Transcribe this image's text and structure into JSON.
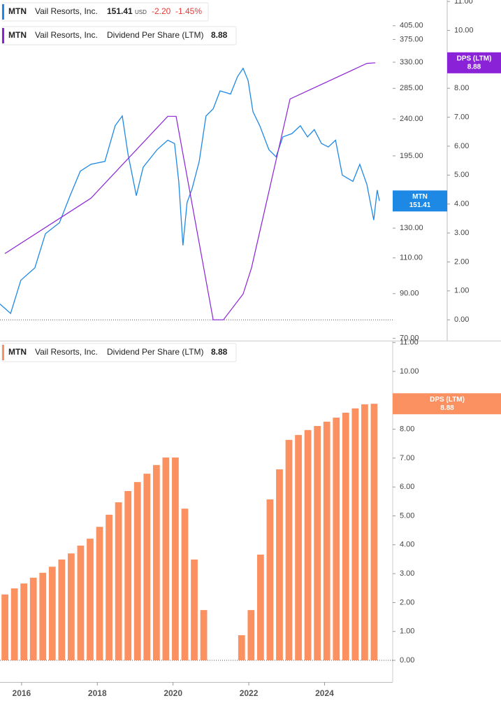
{
  "chart_data": [
    {
      "type": "line",
      "ylog": true,
      "xlim": [
        2015.43,
        2025.8
      ],
      "ylim": [
        69.1,
        468
      ],
      "y2lim": [
        -0.72,
        11.05
      ],
      "yticks": [
        {
          "value": 70,
          "label": "70.00"
        },
        {
          "value": 90,
          "label": "90.00"
        },
        {
          "value": 110,
          "label": "110.00"
        },
        {
          "value": 130,
          "label": "130.00"
        },
        {
          "value": 195,
          "label": "195.00"
        },
        {
          "value": 240,
          "label": "240.00"
        },
        {
          "value": 285,
          "label": "285.00"
        },
        {
          "value": 330,
          "label": "330.00"
        },
        {
          "value": 375,
          "label": "375.00"
        },
        {
          "value": 405,
          "label": "405.00"
        }
      ],
      "y2ticks": [
        {
          "value": 0,
          "label": "0.00"
        },
        {
          "value": 1,
          "label": "1.00"
        },
        {
          "value": 2,
          "label": "2.00"
        },
        {
          "value": 3,
          "label": "3.00"
        },
        {
          "value": 4,
          "label": "4.00"
        },
        {
          "value": 5,
          "label": "5.00"
        },
        {
          "value": 6,
          "label": "6.00"
        },
        {
          "value": 7,
          "label": "7.00"
        },
        {
          "value": 8,
          "label": "8.00"
        },
        {
          "value": 9,
          "label": "9.00"
        },
        {
          "value": 10,
          "label": "10.00"
        },
        {
          "value": 11,
          "label": "11.00"
        }
      ],
      "y2_label": "DPS (LTM)",
      "series": [
        {
          "ticker": "MTN",
          "name": "Vail Resorts, Inc.",
          "currency": "USD",
          "color": "#1e88e5",
          "change": {
            "value": -2.2,
            "label": "-2.20"
          },
          "change_pct": {
            "value": -1.45,
            "label": "-1.45%"
          },
          "x": [
            2015.43,
            2015.71,
            2015.98,
            2016.35,
            2016.63,
            2017.0,
            2017.28,
            2017.55,
            2017.83,
            2018.2,
            2018.47,
            2018.66,
            2018.81,
            2019.03,
            2019.21,
            2019.58,
            2019.86,
            2020.04,
            2020.15,
            2020.26,
            2020.37,
            2020.5,
            2020.69,
            2020.87,
            2021.06,
            2021.24,
            2021.52,
            2021.7,
            2021.85,
            2021.98,
            2022.11,
            2022.29,
            2022.53,
            2022.72,
            2022.9,
            2023.14,
            2023.36,
            2023.55,
            2023.73,
            2023.92,
            2024.1,
            2024.29,
            2024.47,
            2024.75,
            2024.93,
            2025.12,
            2025.3,
            2025.39,
            2025.45
          ],
          "values": [
            84.9,
            80.5,
            97,
            104,
            126,
            134,
            156,
            179,
            186,
            189,
            231,
            244,
            197,
            156,
            183,
            202,
            213,
            209,
            169,
            118,
            150,
            162,
            189,
            244,
            254,
            281,
            276,
            304,
            319,
            298,
            250,
            231,
            202,
            194,
            217,
            221,
            231,
            217,
            226,
            209,
            205,
            213,
            175,
            169,
            186,
            166,
            136,
            161,
            151.41
          ]
        },
        {
          "ticker": "MTN",
          "company": "Vail Resorts, Inc.",
          "name": "Dividend Per Share (LTM)",
          "axis": "y2",
          "color": "#8a22d8",
          "x": [
            2015.56,
            2017.83,
            2019.86,
            2020.08,
            2021.06,
            2021.33,
            2021.85,
            2022.07,
            2023.09,
            2025.12,
            2025.34
          ],
          "values": [
            2.29,
            4.2,
            7.03,
            7.03,
            0,
            0,
            0.89,
            1.79,
            7.63,
            8.86,
            8.88
          ]
        }
      ]
    },
    {
      "type": "bar",
      "xlim": [
        2015.43,
        2025.8
      ],
      "xticks": [
        2016,
        2018,
        2020,
        2022,
        2024
      ],
      "ylim": [
        -0.75,
        11.04
      ],
      "yticks": [
        {
          "value": 0,
          "label": "0.00"
        },
        {
          "value": 1,
          "label": "1.00"
        },
        {
          "value": 2,
          "label": "2.00"
        },
        {
          "value": 3,
          "label": "3.00"
        },
        {
          "value": 4,
          "label": "4.00"
        },
        {
          "value": 5,
          "label": "5.00"
        },
        {
          "value": 6,
          "label": "6.00"
        },
        {
          "value": 7,
          "label": "7.00"
        },
        {
          "value": 8,
          "label": "8.00"
        },
        {
          "value": 9,
          "label": "9.00"
        },
        {
          "value": 10,
          "label": "10.00"
        },
        {
          "value": 11,
          "label": "11.00"
        }
      ],
      "ylabel": "DPS (LTM)",
      "series": [
        {
          "ticker": "MTN",
          "company": "Vail Resorts, Inc.",
          "name": "Dividend Per Share (LTM)",
          "color": "#fb9160",
          "x": [
            2015.56,
            2015.81,
            2016.06,
            2016.31,
            2016.56,
            2016.81,
            2017.06,
            2017.31,
            2017.56,
            2017.81,
            2018.06,
            2018.31,
            2018.56,
            2018.81,
            2019.06,
            2019.31,
            2019.56,
            2019.81,
            2020.06,
            2020.31,
            2020.56,
            2020.81,
            2021.06,
            2021.31,
            2021.56,
            2021.81,
            2022.06,
            2022.31,
            2022.56,
            2022.81,
            2023.06,
            2023.31,
            2023.56,
            2023.81,
            2024.06,
            2024.31,
            2024.56,
            2024.81,
            2025.06,
            2025.31
          ],
          "values": [
            2.28,
            2.49,
            2.66,
            2.86,
            3.03,
            3.24,
            3.49,
            3.7,
            3.97,
            4.21,
            4.62,
            5.04,
            5.47,
            5.86,
            6.17,
            6.46,
            6.76,
            7.02,
            7.02,
            5.25,
            3.49,
            1.74,
            0,
            0,
            0,
            0.87,
            1.74,
            3.66,
            5.57,
            6.61,
            7.63,
            7.8,
            7.97,
            8.11,
            8.26,
            8.4,
            8.57,
            8.72,
            8.86,
            8.88
          ]
        }
      ]
    }
  ]
}
